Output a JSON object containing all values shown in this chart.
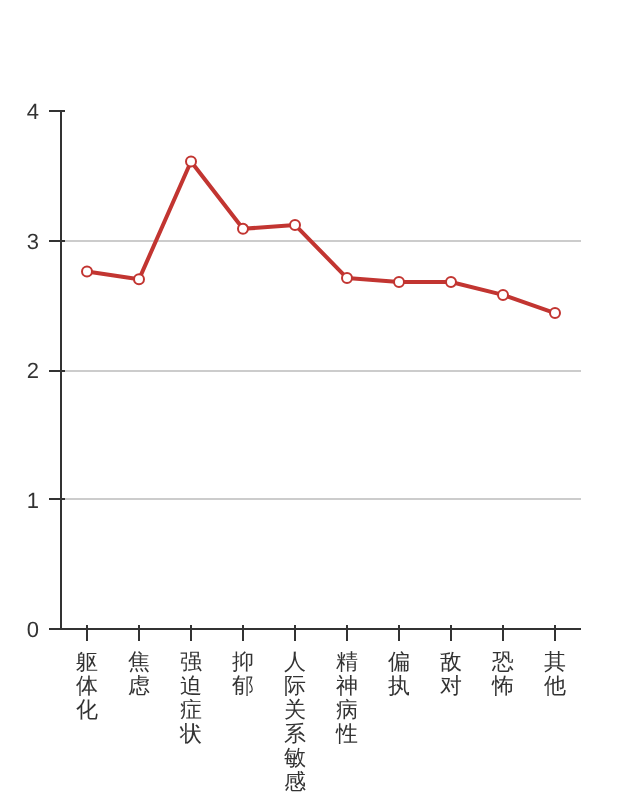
{
  "chart_data": {
    "type": "line",
    "categories": [
      "躯体化",
      "焦虑",
      "强迫症状",
      "抑郁",
      "人际关系敏感",
      "精神病性",
      "偏执",
      "敌对",
      "恐怖",
      "其他"
    ],
    "series": [
      {
        "color": "#c23531",
        "values": [
          2.76,
          2.7,
          3.61,
          3.09,
          3.12,
          2.71,
          2.68,
          2.68,
          2.58,
          2.44
        ]
      }
    ],
    "ylim": [
      0,
      4
    ],
    "yticks": [
      0,
      1,
      2,
      3,
      4
    ],
    "grid": "y",
    "marker": "circle",
    "line_style": "solid"
  }
}
